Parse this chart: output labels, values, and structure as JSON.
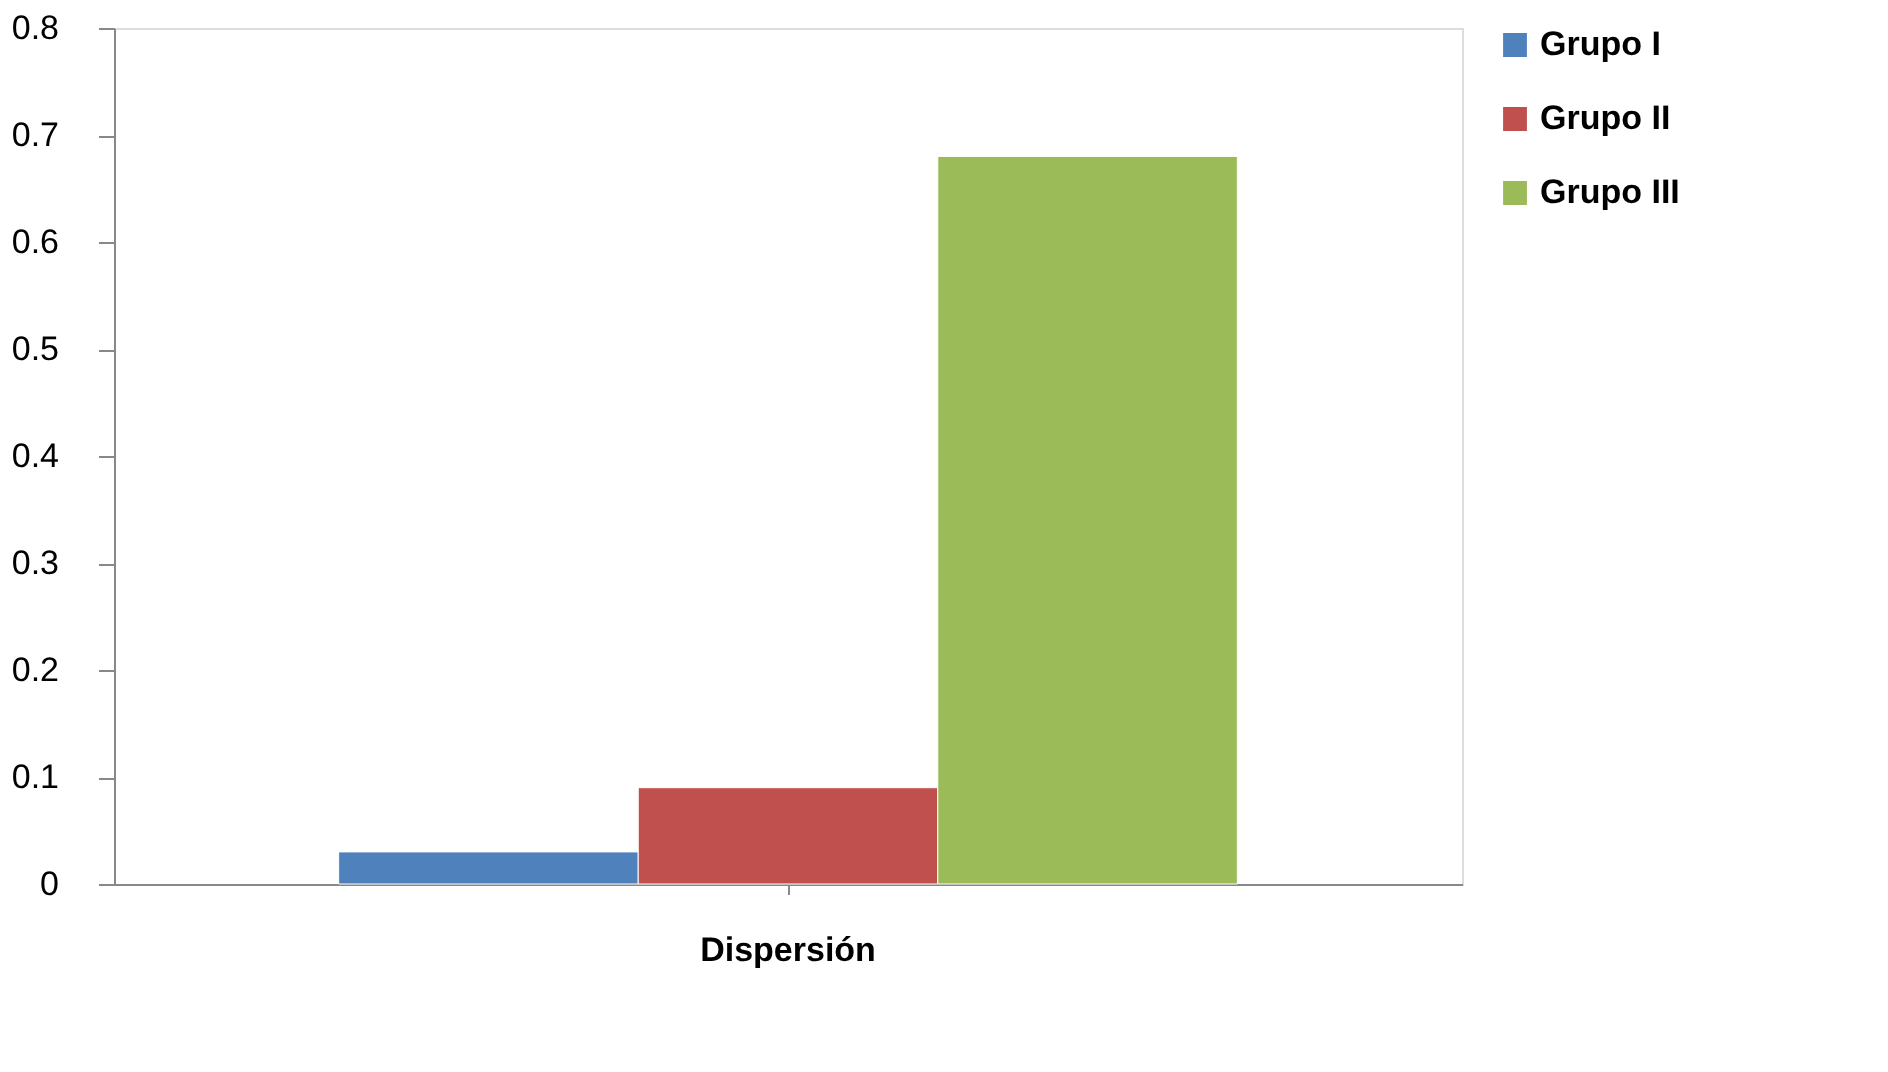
{
  "chart_data": {
    "type": "bar",
    "categories": [
      "Dispersión"
    ],
    "series": [
      {
        "name": "Grupo I",
        "color": "#4f81bd",
        "values": [
          0.03
        ]
      },
      {
        "name": "Grupo II",
        "color": "#c0504d",
        "values": [
          0.09
        ]
      },
      {
        "name": "Grupo III",
        "color": "#9bbb59",
        "values": [
          0.68
        ]
      }
    ],
    "ylim": [
      0,
      0.8
    ],
    "yticks": [
      0,
      0.1,
      0.2,
      0.3,
      0.4,
      0.5,
      0.6,
      0.7,
      0.8
    ],
    "grid": false,
    "legend": "right"
  }
}
